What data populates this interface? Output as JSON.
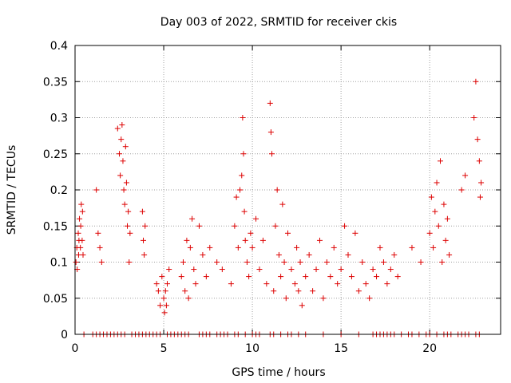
{
  "chart_data": {
    "type": "scatter",
    "title": "Day 003 of 2022, SRMTID for receiver ckis",
    "xlabel": "GPS time / hours",
    "ylabel": "SRMTID / TECUs",
    "xlim": [
      0,
      24
    ],
    "ylim": [
      0,
      0.4
    ],
    "x_ticks": [
      0,
      5,
      10,
      15,
      20
    ],
    "x_tick_labels": [
      "0",
      "5",
      "10",
      "15",
      "20"
    ],
    "y_ticks": [
      0,
      0.05,
      0.1,
      0.15,
      0.2,
      0.25,
      0.3,
      0.35,
      0.4
    ],
    "y_tick_labels": [
      "0",
      "0.05",
      "0.1",
      "0.15",
      "0.2",
      "0.25",
      "0.3",
      "0.35",
      "0.4"
    ],
    "grid": true,
    "marker": "+",
    "series_color": "#dd0000",
    "series": [
      {
        "name": "SRMTID",
        "x": [
          0.05,
          0.1,
          0.12,
          0.18,
          0.2,
          0.22,
          0.25,
          0.3,
          0.32,
          0.35,
          0.4,
          0.42,
          0.45,
          1.2,
          1.3,
          1.4,
          1.5,
          2.4,
          2.5,
          2.55,
          2.6,
          2.65,
          2.7,
          2.75,
          2.8,
          2.85,
          2.9,
          2.95,
          3.0,
          3.05,
          3.1,
          3.8,
          3.85,
          3.9,
          3.95,
          4.6,
          4.7,
          4.8,
          4.9,
          5.0,
          5.05,
          5.1,
          5.15,
          5.2,
          5.3,
          6.0,
          6.1,
          6.2,
          6.3,
          6.4,
          6.5,
          6.6,
          6.7,
          6.8,
          7.0,
          7.2,
          7.4,
          7.6,
          8.0,
          8.3,
          8.8,
          9.0,
          9.1,
          9.2,
          9.3,
          9.4,
          9.45,
          9.5,
          9.55,
          9.6,
          9.7,
          9.8,
          9.9,
          10.0,
          10.2,
          10.4,
          10.6,
          10.8,
          11.0,
          11.05,
          11.1,
          11.2,
          11.3,
          11.4,
          11.5,
          11.6,
          11.7,
          11.8,
          11.9,
          12.0,
          12.2,
          12.4,
          12.5,
          12.6,
          12.7,
          12.8,
          13.0,
          13.2,
          13.4,
          13.6,
          13.8,
          14.0,
          14.2,
          14.4,
          14.6,
          14.8,
          15.0,
          15.2,
          15.4,
          15.6,
          15.8,
          16.0,
          16.2,
          16.4,
          16.6,
          16.8,
          17.0,
          17.2,
          17.4,
          17.6,
          17.8,
          18.0,
          18.2,
          19.0,
          19.5,
          20.0,
          20.1,
          20.2,
          20.3,
          20.4,
          20.5,
          20.6,
          20.7,
          20.8,
          20.9,
          21.0,
          21.1,
          21.8,
          22.0,
          22.5,
          22.6,
          22.7,
          22.8,
          22.85,
          22.9
        ],
        "y": [
          0.1,
          0.12,
          0.09,
          0.14,
          0.11,
          0.13,
          0.16,
          0.12,
          0.15,
          0.18,
          0.13,
          0.17,
          0.11,
          0.2,
          0.14,
          0.12,
          0.1,
          0.285,
          0.25,
          0.22,
          0.27,
          0.29,
          0.24,
          0.2,
          0.18,
          0.26,
          0.21,
          0.15,
          0.17,
          0.1,
          0.14,
          0.17,
          0.13,
          0.11,
          0.15,
          0.07,
          0.06,
          0.04,
          0.08,
          0.05,
          0.03,
          0.06,
          0.04,
          0.07,
          0.09,
          0.08,
          0.1,
          0.06,
          0.13,
          0.05,
          0.12,
          0.16,
          0.09,
          0.07,
          0.15,
          0.11,
          0.08,
          0.12,
          0.1,
          0.09,
          0.07,
          0.15,
          0.19,
          0.12,
          0.2,
          0.22,
          0.3,
          0.25,
          0.17,
          0.13,
          0.1,
          0.08,
          0.14,
          0.12,
          0.16,
          0.09,
          0.13,
          0.07,
          0.32,
          0.28,
          0.25,
          0.06,
          0.15,
          0.2,
          0.11,
          0.08,
          0.18,
          0.1,
          0.05,
          0.14,
          0.09,
          0.07,
          0.12,
          0.06,
          0.1,
          0.04,
          0.08,
          0.11,
          0.06,
          0.09,
          0.13,
          0.05,
          0.1,
          0.08,
          0.12,
          0.07,
          0.09,
          0.15,
          0.11,
          0.08,
          0.14,
          0.06,
          0.1,
          0.07,
          0.05,
          0.09,
          0.08,
          0.12,
          0.1,
          0.07,
          0.09,
          0.11,
          0.08,
          0.12,
          0.1,
          0.14,
          0.19,
          0.12,
          0.17,
          0.21,
          0.15,
          0.24,
          0.1,
          0.18,
          0.13,
          0.16,
          0.11,
          0.2,
          0.22,
          0.3,
          0.35,
          0.27,
          0.24,
          0.19,
          0.21
        ]
      }
    ],
    "zero_marks_x": [
      0.5,
      1.0,
      1.2,
      1.4,
      1.6,
      1.8,
      2.0,
      2.2,
      2.4,
      2.6,
      2.8,
      3.2,
      3.4,
      3.6,
      3.8,
      4.0,
      4.2,
      4.4,
      4.6,
      4.8,
      5.2,
      5.4,
      5.6,
      5.8,
      6.0,
      6.2,
      6.4,
      7.0,
      7.2,
      7.4,
      7.6,
      8.0,
      8.2,
      8.4,
      8.6,
      9.0,
      9.2,
      9.6,
      10.0,
      10.2,
      10.4,
      11.0,
      11.2,
      11.6,
      12.0,
      12.2,
      12.6,
      13.0,
      14.0,
      15.0,
      16.0,
      16.8,
      17.0,
      17.2,
      17.4,
      17.6,
      17.8,
      18.0,
      18.4,
      18.8,
      19.0,
      19.4,
      19.8,
      20.0,
      20.4,
      20.8,
      21.0,
      21.2,
      21.6,
      21.8,
      22.0,
      22.2,
      22.6,
      22.8
    ]
  }
}
